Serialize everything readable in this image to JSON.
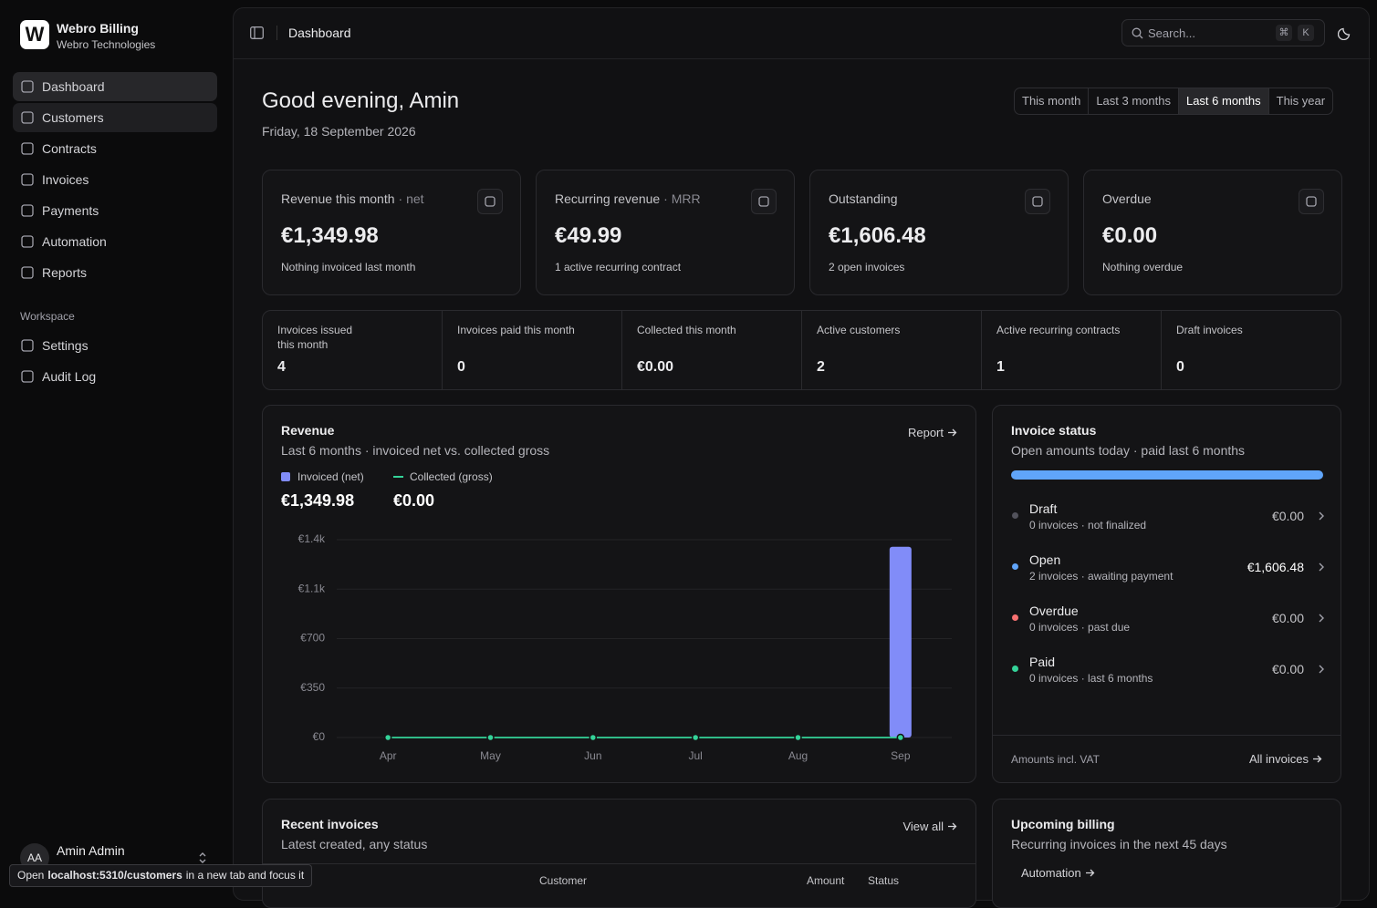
{
  "sidebar": {
    "logo": "W",
    "app_name": "Webro Billing",
    "org": "Webro Technologies",
    "nav": [
      "Dashboard",
      "Customers",
      "Contracts",
      "Invoices",
      "Payments",
      "Automation",
      "Reports"
    ],
    "active_nav": 0,
    "hovered_nav": 1,
    "workspace_label": "Workspace",
    "workspace_nav": [
      "Settings",
      "Audit Log"
    ],
    "user": {
      "initials": "AA",
      "name": "Amin Admin"
    }
  },
  "link_hint": {
    "before": "Open",
    "url": "localhost:5310/customers",
    "after": "in a new tab and focus it"
  },
  "header": {
    "title": "Dashboard",
    "search": "Search...",
    "keys": [
      "⌘",
      "K"
    ]
  },
  "greeting": "Good evening, Amin",
  "date": "Friday, 18 September 2026",
  "ranges": [
    "This month",
    "Last 3 months",
    "Last 6 months",
    "This year"
  ],
  "active_range": 2,
  "kpis": [
    {
      "label": "Revenue this month",
      "qualifier": "· net",
      "value": "€1,349.98",
      "note": "Nothing invoiced last month"
    },
    {
      "label": "Recurring revenue",
      "qualifier": "· MRR",
      "value": "€49.99",
      "note": "1 active recurring contract"
    },
    {
      "label": "Outstanding",
      "value": "€1,606.48",
      "note": "2 open invoices"
    },
    {
      "label": "Overdue",
      "value": "€0.00",
      "note": "Nothing overdue"
    }
  ],
  "stats": [
    {
      "label": "Invoices issued this month",
      "value": 4
    },
    {
      "label": "Invoices paid this month",
      "value": 0
    },
    {
      "label": "Collected this month",
      "value": "€0.00"
    },
    {
      "label": "Active customers",
      "value": 2
    },
    {
      "label": "Active recurring contracts",
      "value": 1
    },
    {
      "label": "Draft invoices",
      "value": 0
    }
  ],
  "chart_data": {
    "type": "bar",
    "title": "Revenue",
    "subtitle": "Last 6 months · invoiced net vs. collected gross",
    "link": "Report",
    "categories": [
      "Apr",
      "May",
      "Jun",
      "Jul",
      "Aug",
      "Sep"
    ],
    "series": [
      {
        "name": "Invoiced (net)",
        "color": "#818cf8",
        "values": [
          0,
          0,
          0,
          0,
          0,
          1349.98
        ],
        "total_label": "€1,349.98"
      },
      {
        "name": "Collected (gross)",
        "type": "line",
        "color": "#34d399",
        "values": [
          0,
          0,
          0,
          0,
          0,
          0
        ],
        "total_label": "€0.00"
      }
    ],
    "ylim": [
      0,
      1400
    ],
    "yticks": [
      {
        "value": 0,
        "label": "€0"
      },
      {
        "value": 350,
        "label": "€350"
      },
      {
        "value": 700,
        "label": "€700"
      },
      {
        "value": 1050,
        "label": "€1.1k"
      },
      {
        "value": 1400,
        "label": "€1.4k"
      }
    ],
    "grid": true
  },
  "invoice_status": {
    "title": "Invoice status",
    "subtitle": "Open amounts today · paid last 6 months",
    "items": [
      {
        "name": "Draft",
        "detail": "0 invoices · not finalized",
        "amount": "€0.00",
        "color": "#52525b"
      },
      {
        "name": "Open",
        "detail": "2 invoices · awaiting payment",
        "amount": "€1,606.48",
        "color": "#60a5fa"
      },
      {
        "name": "Overdue",
        "detail": "0 invoices · past due",
        "amount": "€0.00",
        "color": "#f87171"
      },
      {
        "name": "Paid",
        "detail": "0 invoices · last 6 months",
        "amount": "€0.00",
        "color": "#34d399"
      }
    ],
    "footer": "Amounts incl. VAT",
    "link": "All invoices"
  },
  "recent_invoices": {
    "title": "Recent invoices",
    "subtitle": "Latest created, any status",
    "link": "View all",
    "columns": [
      "Customer",
      "Amount",
      "Status"
    ]
  },
  "upcoming_billing": {
    "title": "Upcoming billing",
    "subtitle": "Recurring invoices in the next 45 days",
    "button": "Automation"
  }
}
